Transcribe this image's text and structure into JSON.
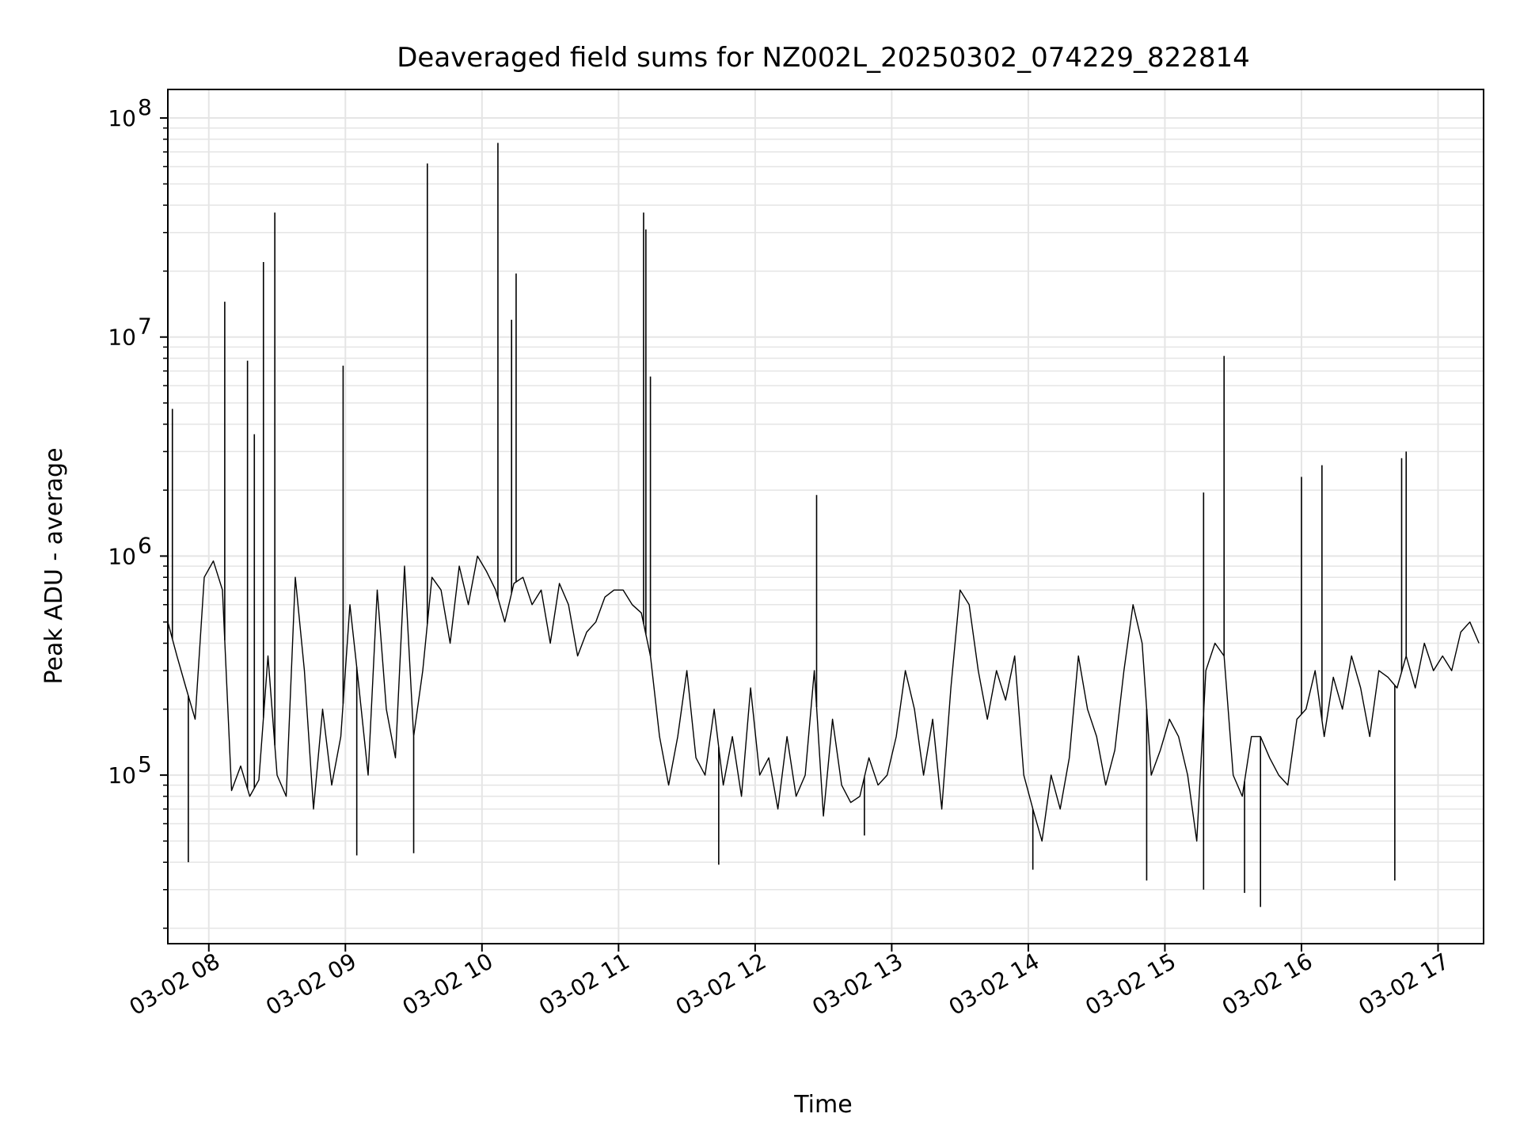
{
  "chart_data": {
    "type": "line",
    "title": "Deaveraged field sums for NZ002L_20250302_074229_822814",
    "xlabel": "Time",
    "ylabel": "Peak ADU - average",
    "y_scale": "log",
    "ylim": [
      17000,
      135000000
    ],
    "x_range": [
      "2025-03-02 07:42",
      "2025-03-02 17:20"
    ],
    "grid": true,
    "line_color": "#000000",
    "grid_color": "#e5e5e5",
    "x_ticks": [
      {
        "time": "2025-03-02 08:00",
        "label": "03-02 08"
      },
      {
        "time": "2025-03-02 09:00",
        "label": "03-02 09"
      },
      {
        "time": "2025-03-02 10:00",
        "label": "03-02 10"
      },
      {
        "time": "2025-03-02 11:00",
        "label": "03-02 11"
      },
      {
        "time": "2025-03-02 12:00",
        "label": "03-02 12"
      },
      {
        "time": "2025-03-02 13:00",
        "label": "03-02 13"
      },
      {
        "time": "2025-03-02 14:00",
        "label": "03-02 14"
      },
      {
        "time": "2025-03-02 15:00",
        "label": "03-02 15"
      },
      {
        "time": "2025-03-02 16:00",
        "label": "03-02 16"
      },
      {
        "time": "2025-03-02 17:00",
        "label": "03-02 17"
      }
    ],
    "y_ticks": [
      {
        "value": 100000,
        "base": "10",
        "exp": "5"
      },
      {
        "value": 1000000,
        "base": "10",
        "exp": "6"
      },
      {
        "value": 10000000,
        "base": "10",
        "exp": "7"
      },
      {
        "value": 100000000,
        "base": "10",
        "exp": "8"
      }
    ],
    "series": [
      {
        "x": [
          "2025-03-02 07:42",
          "2025-03-02 07:46",
          "2025-03-02 07:50",
          "2025-03-02 07:54",
          "2025-03-02 07:58",
          "2025-03-02 08:02",
          "2025-03-02 08:06",
          "2025-03-02 08:10",
          "2025-03-02 08:14",
          "2025-03-02 08:18",
          "2025-03-02 08:22",
          "2025-03-02 08:26",
          "2025-03-02 08:30",
          "2025-03-02 08:34",
          "2025-03-02 08:38",
          "2025-03-02 08:42",
          "2025-03-02 08:46",
          "2025-03-02 08:50",
          "2025-03-02 08:54",
          "2025-03-02 08:58",
          "2025-03-02 09:02",
          "2025-03-02 09:06",
          "2025-03-02 09:10",
          "2025-03-02 09:14",
          "2025-03-02 09:18",
          "2025-03-02 09:22",
          "2025-03-02 09:26",
          "2025-03-02 09:30",
          "2025-03-02 09:34",
          "2025-03-02 09:38",
          "2025-03-02 09:42",
          "2025-03-02 09:46",
          "2025-03-02 09:50",
          "2025-03-02 09:54",
          "2025-03-02 09:58",
          "2025-03-02 10:02",
          "2025-03-02 10:06",
          "2025-03-02 10:10",
          "2025-03-02 10:14",
          "2025-03-02 10:18",
          "2025-03-02 10:22",
          "2025-03-02 10:26",
          "2025-03-02 10:30",
          "2025-03-02 10:34",
          "2025-03-02 10:38",
          "2025-03-02 10:42",
          "2025-03-02 10:46",
          "2025-03-02 10:50",
          "2025-03-02 10:54",
          "2025-03-02 10:58",
          "2025-03-02 11:02",
          "2025-03-02 11:06",
          "2025-03-02 11:10",
          "2025-03-02 11:14",
          "2025-03-02 11:18",
          "2025-03-02 11:22",
          "2025-03-02 11:26",
          "2025-03-02 11:30",
          "2025-03-02 11:34",
          "2025-03-02 11:38",
          "2025-03-02 11:42",
          "2025-03-02 11:46",
          "2025-03-02 11:50",
          "2025-03-02 11:54",
          "2025-03-02 11:58",
          "2025-03-02 12:02",
          "2025-03-02 12:06",
          "2025-03-02 12:10",
          "2025-03-02 12:14",
          "2025-03-02 12:18",
          "2025-03-02 12:22",
          "2025-03-02 12:26",
          "2025-03-02 12:30",
          "2025-03-02 12:34",
          "2025-03-02 12:38",
          "2025-03-02 12:42",
          "2025-03-02 12:46",
          "2025-03-02 12:50",
          "2025-03-02 12:54",
          "2025-03-02 12:58",
          "2025-03-02 13:02",
          "2025-03-02 13:06",
          "2025-03-02 13:10",
          "2025-03-02 13:14",
          "2025-03-02 13:18",
          "2025-03-02 13:22",
          "2025-03-02 13:26",
          "2025-03-02 13:30",
          "2025-03-02 13:34",
          "2025-03-02 13:38",
          "2025-03-02 13:42",
          "2025-03-02 13:46",
          "2025-03-02 13:50",
          "2025-03-02 13:54",
          "2025-03-02 13:58",
          "2025-03-02 14:02",
          "2025-03-02 14:06",
          "2025-03-02 14:10",
          "2025-03-02 14:14",
          "2025-03-02 14:18",
          "2025-03-02 14:22",
          "2025-03-02 14:26",
          "2025-03-02 14:30",
          "2025-03-02 14:34",
          "2025-03-02 14:38",
          "2025-03-02 14:42",
          "2025-03-02 14:46",
          "2025-03-02 14:50",
          "2025-03-02 14:54",
          "2025-03-02 14:58",
          "2025-03-02 15:02",
          "2025-03-02 15:06",
          "2025-03-02 15:10",
          "2025-03-02 15:14",
          "2025-03-02 15:18",
          "2025-03-02 15:22",
          "2025-03-02 15:26",
          "2025-03-02 15:30",
          "2025-03-02 15:34",
          "2025-03-02 15:38",
          "2025-03-02 15:42",
          "2025-03-02 15:46",
          "2025-03-02 15:50",
          "2025-03-02 15:54",
          "2025-03-02 15:58",
          "2025-03-02 16:02",
          "2025-03-02 16:06",
          "2025-03-02 16:10",
          "2025-03-02 16:14",
          "2025-03-02 16:18",
          "2025-03-02 16:22",
          "2025-03-02 16:26",
          "2025-03-02 16:30",
          "2025-03-02 16:34",
          "2025-03-02 16:38",
          "2025-03-02 16:42",
          "2025-03-02 16:46",
          "2025-03-02 16:50",
          "2025-03-02 16:54",
          "2025-03-02 16:58",
          "2025-03-02 17:02",
          "2025-03-02 17:06",
          "2025-03-02 17:10",
          "2025-03-02 17:14",
          "2025-03-02 17:18"
        ],
        "y": [
          500000,
          350000,
          250000,
          180000,
          800000,
          950000,
          700000,
          85000,
          110000,
          80000,
          95000,
          350000,
          100000,
          80000,
          800000,
          300000,
          70000,
          200000,
          90000,
          150000,
          600000,
          250000,
          100000,
          700000,
          200000,
          120000,
          900000,
          150000,
          300000,
          800000,
          700000,
          400000,
          900000,
          600000,
          1000000,
          850000,
          700000,
          500000,
          750000,
          800000,
          600000,
          700000,
          400000,
          750000,
          600000,
          350000,
          450000,
          500000,
          650000,
          700000,
          700000,
          600000,
          550000,
          350000,
          150000,
          90000,
          150000,
          300000,
          120000,
          100000,
          200000,
          90000,
          150000,
          80000,
          250000,
          100000,
          120000,
          70000,
          150000,
          80000,
          100000,
          300000,
          65000,
          180000,
          90000,
          75000,
          80000,
          120000,
          90000,
          100000,
          150000,
          300000,
          200000,
          100000,
          180000,
          70000,
          250000,
          700000,
          600000,
          300000,
          180000,
          300000,
          220000,
          350000,
          100000,
          70000,
          50000,
          100000,
          70000,
          120000,
          350000,
          200000,
          150000,
          90000,
          130000,
          300000,
          600000,
          400000,
          100000,
          130000,
          180000,
          150000,
          100000,
          50000,
          300000,
          400000,
          350000,
          100000,
          80000,
          150000,
          150000,
          120000,
          100000,
          90000,
          180000,
          200000,
          300000,
          150000,
          280000,
          200000,
          350000,
          250000,
          150000,
          300000,
          280000,
          250000,
          350000,
          250000,
          400000,
          300000,
          350000,
          300000,
          450000,
          500000,
          400000
        ]
      }
    ],
    "spikes": [
      {
        "time": "2025-03-02 07:44",
        "value": 4700000
      },
      {
        "time": "2025-03-02 08:07",
        "value": 14500000
      },
      {
        "time": "2025-03-02 08:17",
        "value": 7800000
      },
      {
        "time": "2025-03-02 08:20",
        "value": 3600000
      },
      {
        "time": "2025-03-02 08:24",
        "value": 22000000
      },
      {
        "time": "2025-03-02 08:29",
        "value": 37000000
      },
      {
        "time": "2025-03-02 08:59",
        "value": 7400000
      },
      {
        "time": "2025-03-02 09:36",
        "value": 62000000
      },
      {
        "time": "2025-03-02 10:07",
        "value": 77000000
      },
      {
        "time": "2025-03-02 10:13",
        "value": 12000000
      },
      {
        "time": "2025-03-02 10:15",
        "value": 19500000
      },
      {
        "time": "2025-03-02 11:11",
        "value": 37000000
      },
      {
        "time": "2025-03-02 11:12",
        "value": 31000000
      },
      {
        "time": "2025-03-02 11:14",
        "value": 6600000
      },
      {
        "time": "2025-03-02 12:27",
        "value": 1900000
      },
      {
        "time": "2025-03-02 15:17",
        "value": 1950000
      },
      {
        "time": "2025-03-02 15:26",
        "value": 8200000
      },
      {
        "time": "2025-03-02 16:00",
        "value": 2300000
      },
      {
        "time": "2025-03-02 16:09",
        "value": 2600000
      },
      {
        "time": "2025-03-02 16:44",
        "value": 2800000
      },
      {
        "time": "2025-03-02 16:46",
        "value": 3000000
      }
    ],
    "dips": [
      {
        "time": "2025-03-02 07:51",
        "value": 40000
      },
      {
        "time": "2025-03-02 09:05",
        "value": 43000
      },
      {
        "time": "2025-03-02 09:30",
        "value": 44000
      },
      {
        "time": "2025-03-02 11:44",
        "value": 39000
      },
      {
        "time": "2025-03-02 12:48",
        "value": 53000
      },
      {
        "time": "2025-03-02 14:02",
        "value": 37000
      },
      {
        "time": "2025-03-02 14:52",
        "value": 33000
      },
      {
        "time": "2025-03-02 15:17",
        "value": 30000
      },
      {
        "time": "2025-03-02 15:35",
        "value": 29000
      },
      {
        "time": "2025-03-02 15:42",
        "value": 25000
      },
      {
        "time": "2025-03-02 16:41",
        "value": 33000
      }
    ]
  }
}
